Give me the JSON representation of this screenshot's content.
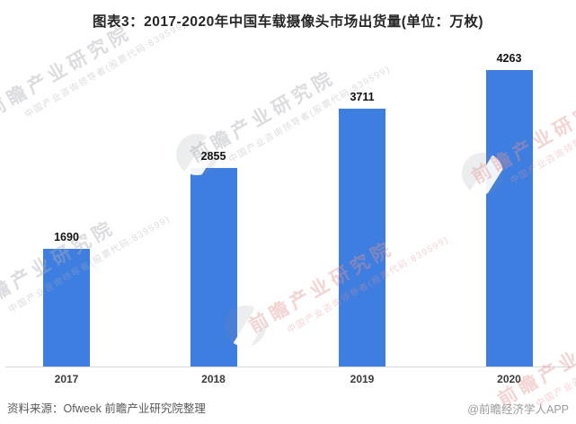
{
  "title": "图表3：2017-2020年中国车载摄像头市场出货量(单位：万枚)",
  "chart_data": {
    "type": "bar",
    "title": "图表3：2017-2020年中国车载摄像头市场出货量",
    "unit": "万枚",
    "categories": [
      "2017",
      "2018",
      "2019",
      "2020"
    ],
    "values": [
      1690,
      2855,
      3711,
      4263
    ],
    "xlabel": "",
    "ylabel": "",
    "ylim": [
      0,
      4500
    ],
    "grid": false,
    "legend": false,
    "bar_color": "#3E7EE0",
    "axis_color": "#D9D9D9"
  },
  "footer": {
    "source": "资料来源：Ofweek 前瞻产业研究院整理",
    "credit": "@前瞻经济学人APP"
  },
  "watermark": {
    "main": "前瞻产业研究院",
    "sub": "中国产业咨询领导者(股票代码:839599)"
  },
  "colors": {
    "bar": "#3E7EE0",
    "axis_line": "#D9D9D9",
    "title_text": "#262626",
    "value_label_text": "#111111",
    "tick_label_text": "#3A3A3A",
    "source_text": "#595959",
    "credit_text": "#9B9B9B",
    "watermark_gray": "#E1E2E6",
    "watermark_pink": "#F4DCDB"
  }
}
